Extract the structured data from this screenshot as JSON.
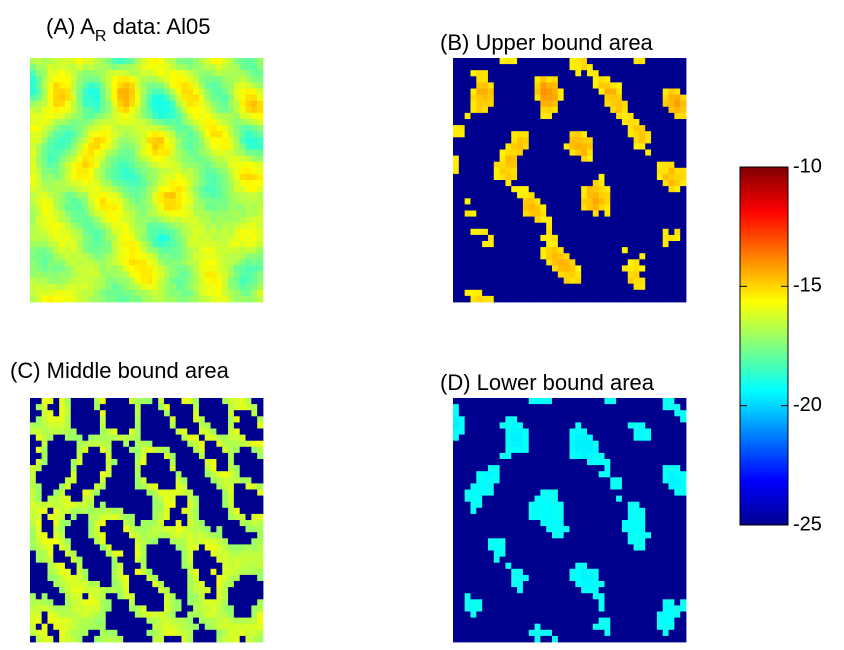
{
  "panels": [
    {
      "title": "(A) A",
      "title_subscript": "R",
      "title_suffix": " data: Al05"
    },
    {
      "title": "(B) Upper bound area"
    },
    {
      "title": "(C) Middle bound area"
    },
    {
      "title": "(D) Lower bound area"
    }
  ],
  "colorbar": {
    "colormap": "jet",
    "lim": [
      -25,
      -10
    ],
    "ticks": [
      -10,
      -15,
      -20,
      -25
    ]
  }
}
